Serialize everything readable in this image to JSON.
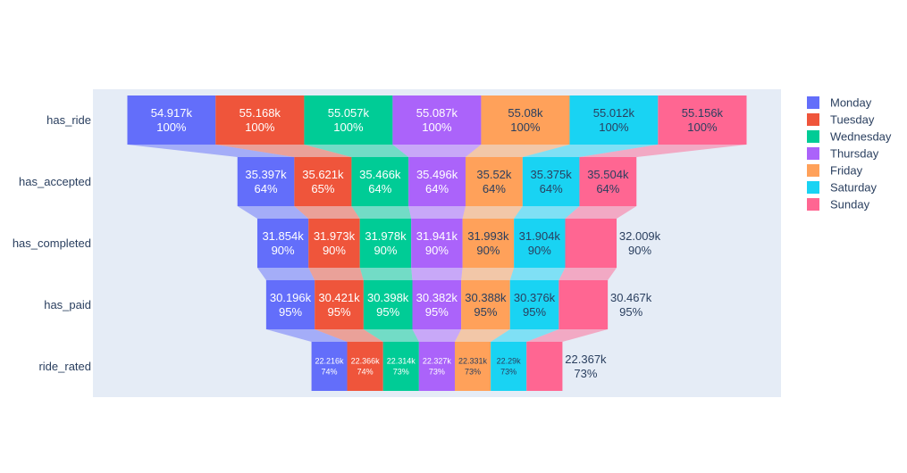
{
  "chart_data": {
    "type": "funnel",
    "stages": [
      "has_ride",
      "has_accepted",
      "has_completed",
      "has_paid",
      "ride_rated"
    ],
    "series": [
      {
        "name": "Monday",
        "color": "#636efa",
        "values": [
          54917,
          35397,
          31854,
          30196,
          22216
        ],
        "labels": [
          "54.917k",
          "35.397k",
          "31.854k",
          "30.196k",
          "22.216k"
        ],
        "percents": [
          "100%",
          "64%",
          "90%",
          "95%",
          "74%"
        ]
      },
      {
        "name": "Tuesday",
        "color": "#ef553b",
        "values": [
          55168,
          35621,
          31973,
          30421,
          22366
        ],
        "labels": [
          "55.168k",
          "35.621k",
          "31.973k",
          "30.421k",
          "22.366k"
        ],
        "percents": [
          "100%",
          "65%",
          "90%",
          "95%",
          "74%"
        ]
      },
      {
        "name": "Wednesday",
        "color": "#00cc96",
        "values": [
          55057,
          35466,
          31978,
          30398,
          22314
        ],
        "labels": [
          "55.057k",
          "35.466k",
          "31.978k",
          "30.398k",
          "22.314k"
        ],
        "percents": [
          "100%",
          "64%",
          "90%",
          "95%",
          "73%"
        ]
      },
      {
        "name": "Thursday",
        "color": "#ab63fa",
        "values": [
          55087,
          35496,
          31941,
          30382,
          22327
        ],
        "labels": [
          "55.087k",
          "35.496k",
          "31.941k",
          "30.382k",
          "22.327k"
        ],
        "percents": [
          "100%",
          "64%",
          "90%",
          "95%",
          "73%"
        ]
      },
      {
        "name": "Friday",
        "color": "#ffa15a",
        "values": [
          55080,
          35520,
          31993,
          30388,
          22331
        ],
        "labels": [
          "55.08k",
          "35.52k",
          "31.993k",
          "30.388k",
          "22.331k"
        ],
        "percents": [
          "100%",
          "64%",
          "90%",
          "95%",
          "73%"
        ]
      },
      {
        "name": "Saturday",
        "color": "#19d3f3",
        "values": [
          55012,
          35375,
          31904,
          30376,
          22290
        ],
        "labels": [
          "55.012k",
          "35.375k",
          "31.904k",
          "30.376k",
          "22.29k"
        ],
        "percents": [
          "100%",
          "64%",
          "90%",
          "95%",
          "73%"
        ]
      },
      {
        "name": "Sunday",
        "color": "#ff6692",
        "values": [
          55156,
          35504,
          32009,
          30467,
          22367
        ],
        "labels": [
          "55.156k",
          "35.504k",
          "32.009k",
          "30.467k",
          "22.367k"
        ],
        "percents": [
          "100%",
          "64%",
          "90%",
          "95%",
          "73%"
        ]
      }
    ],
    "legend_position": "top-right",
    "grid": false
  }
}
